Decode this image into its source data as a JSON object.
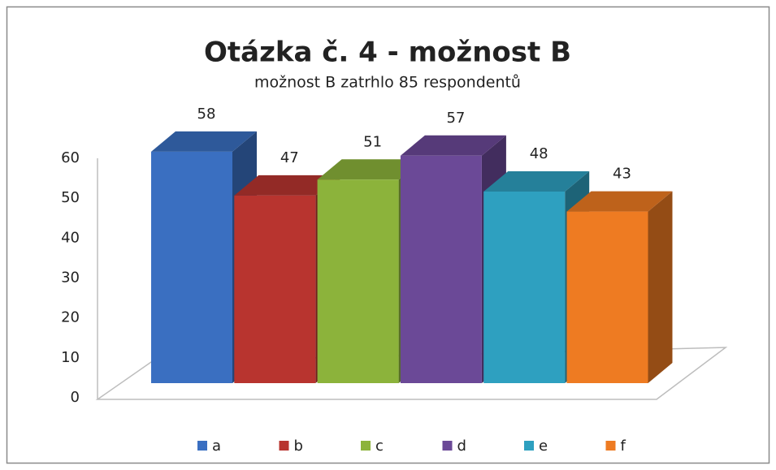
{
  "chart_data": {
    "type": "bar3d",
    "title": "Otázka č. 4 - možnost B",
    "subtitle": "možnost B zatrhlo 85 respondentů",
    "categories": [
      "a",
      "b",
      "c",
      "d",
      "e",
      "f"
    ],
    "values": [
      58,
      47,
      51,
      57,
      48,
      43
    ],
    "colors": [
      "#3a6fc1",
      "#b8342f",
      "#8cb33b",
      "#6b4997",
      "#2ea0c0",
      "#ee7b22"
    ],
    "ylim": [
      0,
      60
    ],
    "yticks": [
      0,
      10,
      20,
      30,
      40,
      50,
      60
    ],
    "legend": "bottom"
  }
}
